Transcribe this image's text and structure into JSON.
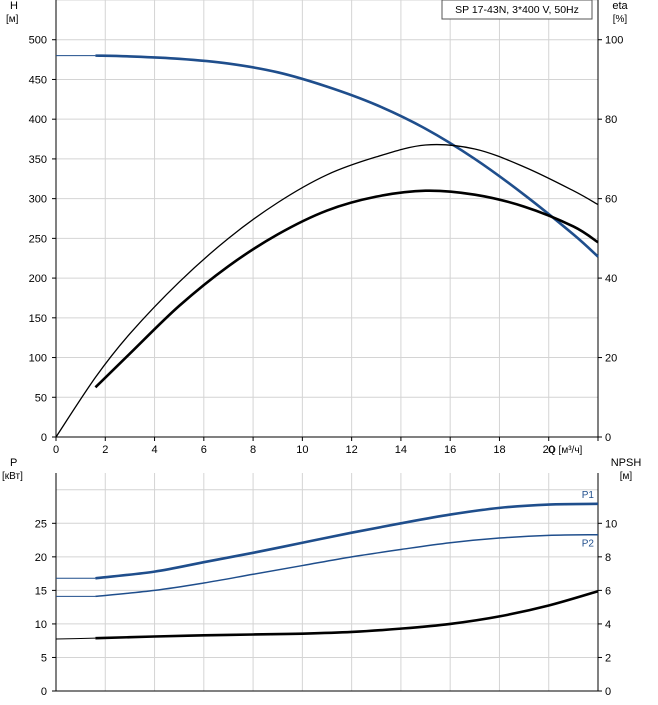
{
  "chart_data": [
    {
      "type": "line",
      "title": "SP 17-43N, 3*400 V, 50Hz",
      "xlabel": "Q [м³/ч]",
      "ylabel": "H",
      "ylabel_unit": "[м]",
      "y2label": "eta",
      "y2label_unit": "[%]",
      "xlim": [
        0,
        22
      ],
      "ylim": [
        0,
        550
      ],
      "y2lim": [
        0,
        110
      ],
      "x_ticks": [
        0,
        2,
        4,
        6,
        8,
        10,
        12,
        14,
        16,
        18,
        20
      ],
      "x_tick_labels": [
        "0",
        "2",
        "4",
        "6",
        "8",
        "10",
        "12",
        "14",
        "16",
        "18",
        "20"
      ],
      "y_ticks": [
        0,
        50,
        100,
        150,
        200,
        250,
        300,
        350,
        400,
        450,
        500
      ],
      "y_tick_labels": [
        "0",
        "50",
        "100",
        "150",
        "200",
        "250",
        "300",
        "350",
        "400",
        "450",
        "500"
      ],
      "y2_ticks": [
        0,
        20,
        40,
        60,
        80,
        100
      ],
      "y2_tick_labels": [
        "0",
        "20",
        "40",
        "60",
        "80",
        "100"
      ],
      "grid": true,
      "series": [
        {
          "color": "#1f4e8c",
          "axis": "left",
          "x": [
            0,
            1.6,
            3,
            5,
            7,
            9,
            11,
            13,
            15,
            17,
            19,
            21,
            22
          ],
          "values": [
            480,
            480,
            479,
            476,
            470,
            459,
            441,
            418,
            388,
            350,
            305,
            255,
            227
          ]
        },
        {
          "color": "#000000",
          "axis": "right",
          "thin": true,
          "x": [
            0,
            1.6,
            3,
            5,
            7,
            9,
            11,
            13,
            15,
            17,
            19,
            21,
            22
          ],
          "values": [
            0,
            15,
            26,
            39,
            50,
            59,
            66,
            70.5,
            73.5,
            72.5,
            68,
            62,
            58.5
          ]
        },
        {
          "color": "#000000",
          "axis": "right",
          "x": [
            1.6,
            3,
            5,
            7,
            9,
            11,
            13,
            15,
            17,
            19,
            21,
            22
          ],
          "values": [
            12.5,
            21,
            33,
            43,
            51,
            57,
            60.5,
            62,
            61,
            58,
            53,
            49
          ]
        }
      ]
    },
    {
      "type": "line",
      "xlabel": "",
      "ylabel": "P",
      "ylabel_unit": "[кВт]",
      "y2label": "NPSH",
      "y2label_unit": "[м]",
      "xlim": [
        0,
        22
      ],
      "ylim": [
        0,
        32.5
      ],
      "y2lim": [
        0,
        13
      ],
      "y_ticks": [
        0,
        5,
        10,
        15,
        20,
        25
      ],
      "y_tick_labels": [
        "0",
        "5",
        "10",
        "15",
        "20",
        "25"
      ],
      "y2_ticks": [
        0,
        2,
        4,
        6,
        8,
        10
      ],
      "y2_tick_labels": [
        "0",
        "2",
        "4",
        "6",
        "8",
        "10"
      ],
      "grid": true,
      "series": [
        {
          "name": "P1",
          "color": "#1f4e8c",
          "axis": "left",
          "x": [
            0,
            1.6,
            4,
            6,
            8,
            10,
            12,
            14,
            16,
            18,
            20,
            22
          ],
          "values": [
            16.8,
            16.8,
            17.8,
            19.2,
            20.6,
            22.1,
            23.6,
            25,
            26.3,
            27.3,
            27.8,
            27.9
          ]
        },
        {
          "name": "P2",
          "color": "#1f4e8c",
          "axis": "left",
          "x": [
            0,
            1.6,
            4,
            6,
            8,
            10,
            12,
            14,
            16,
            18,
            20,
            22
          ],
          "values": [
            14.1,
            14.1,
            15,
            16.1,
            17.4,
            18.7,
            20,
            21.1,
            22.1,
            22.8,
            23.2,
            23.3
          ]
        },
        {
          "color": "#000000",
          "axis": "right",
          "x": [
            0,
            1.6,
            4,
            6,
            8,
            10,
            12,
            14,
            16,
            18,
            20,
            22
          ],
          "values": [
            3.1,
            3.15,
            3.25,
            3.32,
            3.37,
            3.42,
            3.52,
            3.72,
            4.0,
            4.45,
            5.1,
            5.95
          ]
        }
      ]
    }
  ]
}
